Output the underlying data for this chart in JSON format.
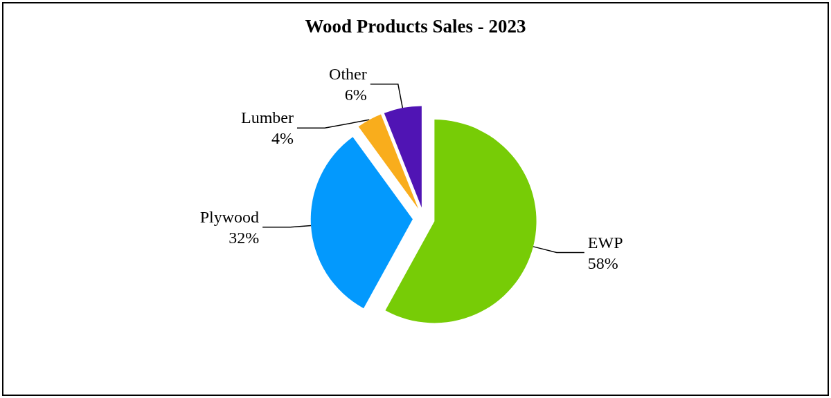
{
  "chart_data": {
    "type": "pie",
    "title": "Wood Products Sales - 2023",
    "categories": [
      "EWP",
      "Plywood",
      "Lumber",
      "Other"
    ],
    "values": [
      58,
      32,
      4,
      6
    ],
    "colors": [
      "#77cc06",
      "#0399fd",
      "#f9ad1c",
      "#5014b4"
    ],
    "value_labels": [
      "58%",
      "32%",
      "4%",
      "6%"
    ],
    "legend": false
  }
}
